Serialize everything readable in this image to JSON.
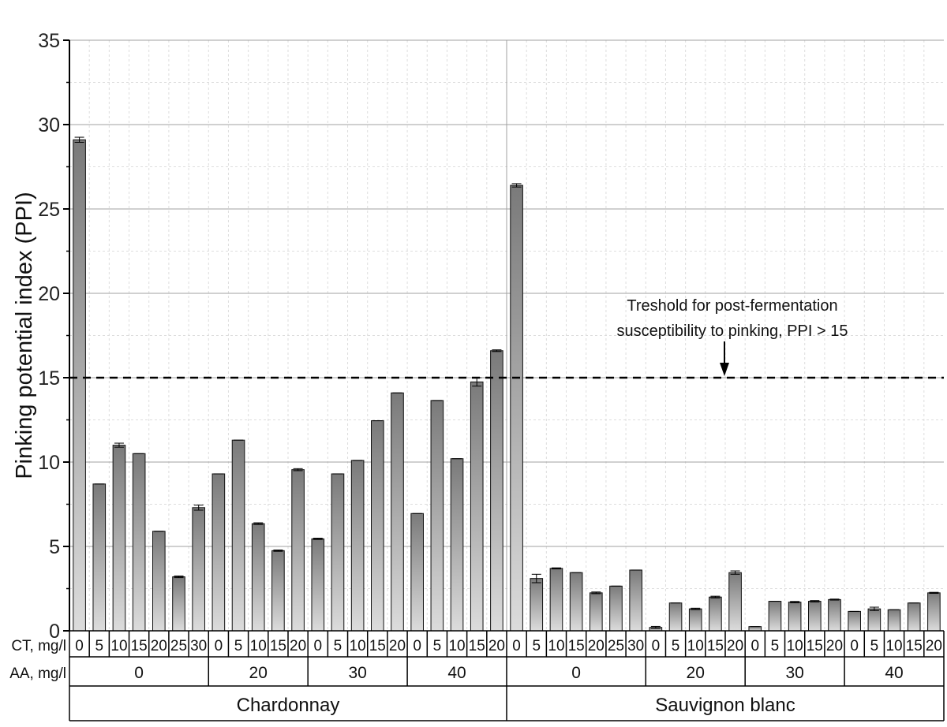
{
  "chart_data": {
    "type": "bar",
    "ylabel": "Pinking potential index (PPI)",
    "ylim": [
      0,
      35
    ],
    "yticks": [
      0,
      5,
      10,
      15,
      20,
      25,
      30,
      35
    ],
    "grid": true,
    "threshold": {
      "value": 15,
      "label_line1": "Treshold for post-fermentation",
      "label_line2": "susceptibility to pinking, PPI > 15"
    },
    "row_labels": {
      "ct": "CT, mg/l",
      "aa": "AA, mg/l"
    },
    "varieties": [
      {
        "name": "Chardonnay",
        "groups": [
          {
            "aa": "0",
            "ct": [
              "0",
              "5",
              "10",
              "15",
              "20",
              "25",
              "30"
            ],
            "values": [
              29.1,
              8.7,
              11.0,
              10.5,
              5.9,
              3.2,
              7.3
            ],
            "errors": [
              0.15,
              0,
              0.12,
              0,
              0,
              0.05,
              0.15
            ]
          },
          {
            "aa": "20",
            "ct": [
              "0",
              "5",
              "10",
              "15",
              "20"
            ],
            "values": [
              9.3,
              11.3,
              6.35,
              4.75,
              9.55
            ],
            "errors": [
              0,
              0,
              0.05,
              0.04,
              0.06
            ]
          },
          {
            "aa": "30",
            "ct": [
              "0",
              "5",
              "10",
              "15",
              "20"
            ],
            "values": [
              5.45,
              9.3,
              10.1,
              12.45,
              14.1
            ],
            "errors": [
              0.04,
              0,
              0,
              0,
              0
            ]
          },
          {
            "aa": "40",
            "ct": [
              "0",
              "5",
              "10",
              "15",
              "20"
            ],
            "values": [
              6.95,
              13.65,
              10.2,
              14.75,
              16.6
            ],
            "errors": [
              0,
              0,
              0,
              0.25,
              0.05
            ]
          }
        ]
      },
      {
        "name": "Sauvignon blanc",
        "groups": [
          {
            "aa": "0",
            "ct": [
              "0",
              "5",
              "10",
              "15",
              "20",
              "25",
              "30"
            ],
            "values": [
              26.4,
              3.1,
              3.7,
              3.45,
              2.25,
              2.65,
              3.6
            ],
            "errors": [
              0.1,
              0.25,
              0.03,
              0,
              0.05,
              0,
              0
            ]
          },
          {
            "aa": "20",
            "ct": [
              "0",
              "5",
              "10",
              "15",
              "20"
            ],
            "values": [
              0.2,
              1.65,
              1.3,
              2.0,
              3.45
            ],
            "errors": [
              0.06,
              0,
              0.04,
              0.05,
              0.1
            ]
          },
          {
            "aa": "30",
            "ct": [
              "0",
              "5",
              "10",
              "15",
              "20"
            ],
            "values": [
              0.25,
              1.75,
              1.7,
              1.75,
              1.85
            ],
            "errors": [
              0,
              0,
              0.04,
              0.04,
              0.03
            ]
          },
          {
            "aa": "40",
            "ct": [
              "0",
              "5",
              "10",
              "15",
              "20"
            ],
            "values": [
              1.15,
              1.3,
              1.25,
              1.65,
              2.25
            ],
            "errors": [
              0,
              0.1,
              0,
              0,
              0.03
            ]
          }
        ]
      }
    ]
  }
}
